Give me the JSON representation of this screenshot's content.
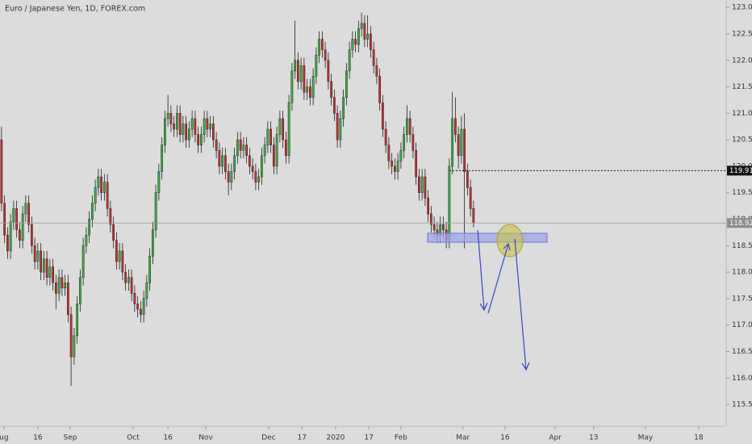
{
  "chart_data": {
    "type": "candlestick",
    "title": "Euro / Japanese Yen, 1D, FOREX.com",
    "up_color": "#3cb043",
    "down_color": "#c62f2f",
    "xlim": [
      -0.5,
      239.5
    ],
    "ylim": [
      115.09,
      123.14
    ],
    "xticks": [
      {
        "value": 0.8,
        "label": "ug"
      },
      {
        "value": 12,
        "label": "16"
      },
      {
        "value": 22.7,
        "label": "Sep"
      },
      {
        "value": 43.5,
        "label": "Oct"
      },
      {
        "value": 55,
        "label": "16"
      },
      {
        "value": 67.5,
        "label": "Nov"
      },
      {
        "value": 88.3,
        "label": "Dec"
      },
      {
        "value": 99.3,
        "label": "17"
      },
      {
        "value": 110.4,
        "label": "2020"
      },
      {
        "value": 121.4,
        "label": "17"
      },
      {
        "value": 132,
        "label": "Feb"
      },
      {
        "value": 152.5,
        "label": "Mar"
      },
      {
        "value": 166.4,
        "label": "16"
      },
      {
        "value": 183,
        "label": "Apr"
      },
      {
        "value": 195.7,
        "label": "13"
      },
      {
        "value": 212.8,
        "label": "May"
      },
      {
        "value": 230.4,
        "label": "18"
      }
    ],
    "yticks": [
      {
        "value": 115.5,
        "label": "115.500"
      },
      {
        "value": 116,
        "label": "116.000"
      },
      {
        "value": 116.5,
        "label": "116.500"
      },
      {
        "value": 117,
        "label": "117.000"
      },
      {
        "value": 117.5,
        "label": "117.500"
      },
      {
        "value": 118,
        "label": "118.000"
      },
      {
        "value": 118.5,
        "label": "118.500"
      },
      {
        "value": 119,
        "label": "119.000"
      },
      {
        "value": 119.5,
        "label": "119.500"
      },
      {
        "value": 120,
        "label": "120.000"
      },
      {
        "value": 120.5,
        "label": "120.500"
      },
      {
        "value": 121,
        "label": "121.000"
      },
      {
        "value": 121.5,
        "label": "121.500"
      },
      {
        "value": 122,
        "label": "122.000"
      },
      {
        "value": 122.5,
        "label": "122.500"
      },
      {
        "value": 123,
        "label": "123.000"
      }
    ],
    "price_lines": [
      {
        "value": 119.917
      }
    ],
    "candles": [
      [
        120.5,
        120.75,
        119.15,
        119.3
      ],
      [
        119.3,
        119.45,
        118.55,
        118.7
      ],
      [
        118.7,
        118.85,
        118.25,
        118.4
      ],
      [
        118.4,
        119.1,
        118.25,
        118.95
      ],
      [
        118.95,
        119.35,
        118.8,
        119.2
      ],
      [
        119.2,
        119.35,
        118.65,
        118.8
      ],
      [
        118.8,
        118.95,
        118.45,
        118.6
      ],
      [
        118.6,
        119.25,
        118.45,
        119.1
      ],
      [
        119.1,
        119.45,
        118.95,
        119.3
      ],
      [
        119.3,
        119.45,
        118.75,
        118.9
      ],
      [
        118.9,
        119.05,
        118.35,
        118.5
      ],
      [
        118.5,
        118.65,
        118.05,
        118.2
      ],
      [
        118.2,
        118.55,
        118.05,
        118.4
      ],
      [
        118.4,
        118.55,
        117.85,
        118.0
      ],
      [
        118.0,
        118.4,
        117.85,
        118.25
      ],
      [
        118.25,
        118.4,
        117.75,
        117.9
      ],
      [
        117.9,
        118.25,
        117.75,
        118.1
      ],
      [
        118.1,
        118.25,
        117.65,
        117.8
      ],
      [
        117.8,
        117.95,
        117.3,
        117.6
      ],
      [
        117.6,
        118.05,
        117.45,
        117.9
      ],
      [
        117.9,
        118.05,
        117.55,
        117.7
      ],
      [
        117.7,
        117.95,
        117.55,
        117.8
      ],
      [
        117.8,
        117.95,
        117.05,
        117.2
      ],
      [
        117.2,
        117.35,
        115.85,
        116.4
      ],
      [
        116.4,
        116.95,
        116.25,
        116.8
      ],
      [
        116.8,
        117.55,
        116.65,
        117.4
      ],
      [
        117.4,
        118.05,
        117.25,
        117.9
      ],
      [
        117.9,
        118.65,
        117.75,
        118.5
      ],
      [
        118.5,
        118.85,
        118.35,
        118.7
      ],
      [
        118.7,
        119.15,
        118.55,
        119.0
      ],
      [
        119.0,
        119.45,
        118.85,
        119.3
      ],
      [
        119.3,
        119.75,
        119.15,
        119.6
      ],
      [
        119.6,
        119.95,
        119.45,
        119.8
      ],
      [
        119.8,
        119.95,
        119.35,
        119.5
      ],
      [
        119.5,
        119.85,
        119.35,
        119.7
      ],
      [
        119.7,
        119.85,
        119.05,
        119.2
      ],
      [
        119.2,
        119.35,
        118.75,
        118.9
      ],
      [
        118.9,
        119.05,
        118.45,
        118.6
      ],
      [
        118.6,
        118.75,
        118.05,
        118.2
      ],
      [
        118.2,
        118.55,
        118.05,
        118.4
      ],
      [
        118.4,
        118.55,
        117.85,
        118.0
      ],
      [
        118.0,
        118.15,
        117.65,
        117.8
      ],
      [
        117.8,
        118.05,
        117.65,
        117.9
      ],
      [
        117.9,
        118.05,
        117.45,
        117.6
      ],
      [
        117.6,
        117.75,
        117.25,
        117.4
      ],
      [
        117.4,
        117.55,
        117.15,
        117.3
      ],
      [
        117.3,
        117.45,
        117.05,
        117.2
      ],
      [
        117.2,
        117.65,
        117.05,
        117.5
      ],
      [
        117.5,
        117.95,
        117.35,
        117.8
      ],
      [
        117.8,
        118.45,
        117.65,
        118.3
      ],
      [
        118.3,
        118.95,
        118.15,
        118.8
      ],
      [
        118.8,
        119.65,
        118.65,
        119.5
      ],
      [
        119.5,
        120.05,
        119.35,
        119.9
      ],
      [
        119.9,
        120.55,
        119.75,
        120.4
      ],
      [
        120.4,
        121.05,
        120.25,
        120.9
      ],
      [
        120.9,
        121.35,
        120.75,
        121.0
      ],
      [
        121.0,
        121.15,
        120.65,
        120.8
      ],
      [
        120.8,
        120.95,
        120.55,
        120.7
      ],
      [
        120.7,
        121.15,
        120.55,
        121.0
      ],
      [
        121.0,
        121.15,
        120.45,
        120.6
      ],
      [
        120.6,
        120.95,
        120.45,
        120.8
      ],
      [
        120.8,
        120.95,
        120.35,
        120.5
      ],
      [
        120.5,
        120.85,
        120.35,
        120.7
      ],
      [
        120.7,
        121.05,
        120.55,
        120.9
      ],
      [
        120.9,
        121.05,
        120.45,
        120.6
      ],
      [
        120.6,
        120.75,
        120.25,
        120.4
      ],
      [
        120.4,
        120.75,
        120.25,
        120.6
      ],
      [
        120.6,
        121.05,
        120.45,
        120.9
      ],
      [
        120.9,
        121.05,
        120.55,
        120.7
      ],
      [
        120.7,
        120.95,
        120.55,
        120.8
      ],
      [
        120.8,
        120.95,
        120.35,
        120.5
      ],
      [
        120.5,
        120.65,
        120.15,
        120.3
      ],
      [
        120.3,
        120.45,
        119.85,
        120.0
      ],
      [
        120.0,
        120.35,
        119.85,
        120.2
      ],
      [
        120.2,
        120.35,
        119.75,
        119.9
      ],
      [
        119.9,
        120.05,
        119.45,
        119.7
      ],
      [
        119.7,
        120.05,
        119.55,
        119.9
      ],
      [
        119.9,
        120.35,
        119.75,
        120.2
      ],
      [
        120.2,
        120.65,
        120.05,
        120.5
      ],
      [
        120.5,
        120.65,
        120.15,
        120.3
      ],
      [
        120.3,
        120.55,
        120.15,
        120.4
      ],
      [
        120.4,
        120.55,
        120.05,
        120.2
      ],
      [
        120.2,
        120.35,
        119.85,
        120.0
      ],
      [
        120.0,
        120.15,
        119.75,
        119.9
      ],
      [
        119.9,
        120.05,
        119.55,
        119.7
      ],
      [
        119.7,
        119.95,
        119.55,
        119.8
      ],
      [
        119.8,
        120.35,
        119.65,
        120.2
      ],
      [
        120.2,
        120.55,
        120.05,
        120.4
      ],
      [
        120.4,
        120.85,
        120.25,
        120.7
      ],
      [
        120.7,
        120.85,
        120.25,
        120.4
      ],
      [
        120.4,
        120.55,
        119.85,
        120.0
      ],
      [
        120.0,
        120.75,
        119.85,
        120.6
      ],
      [
        120.6,
        121.05,
        120.45,
        120.9
      ],
      [
        120.9,
        121.05,
        120.35,
        120.5
      ],
      [
        120.5,
        120.65,
        120.05,
        120.2
      ],
      [
        120.2,
        121.35,
        120.05,
        121.2
      ],
      [
        121.2,
        121.95,
        121.05,
        121.8
      ],
      [
        121.8,
        122.75,
        121.65,
        122.0
      ],
      [
        122.0,
        122.15,
        121.45,
        121.6
      ],
      [
        121.6,
        122.05,
        121.45,
        121.9
      ],
      [
        121.9,
        122.05,
        121.25,
        121.4
      ],
      [
        121.4,
        121.65,
        121.25,
        121.5
      ],
      [
        121.5,
        121.65,
        121.15,
        121.3
      ],
      [
        121.3,
        121.85,
        121.15,
        121.7
      ],
      [
        121.7,
        122.25,
        121.55,
        122.1
      ],
      [
        122.1,
        122.55,
        121.95,
        122.4
      ],
      [
        122.4,
        122.55,
        122.05,
        122.2
      ],
      [
        122.2,
        122.35,
        121.85,
        122.0
      ],
      [
        122.0,
        122.15,
        121.45,
        121.6
      ],
      [
        121.6,
        121.75,
        121.15,
        121.3
      ],
      [
        121.3,
        121.45,
        120.85,
        121.0
      ],
      [
        121.0,
        121.15,
        120.35,
        120.5
      ],
      [
        120.5,
        121.05,
        120.35,
        120.9
      ],
      [
        120.9,
        121.45,
        120.75,
        121.3
      ],
      [
        121.3,
        121.95,
        121.15,
        121.8
      ],
      [
        121.8,
        122.35,
        121.65,
        122.2
      ],
      [
        122.2,
        122.55,
        122.05,
        122.4
      ],
      [
        122.4,
        122.55,
        122.15,
        122.3
      ],
      [
        122.3,
        122.75,
        122.15,
        122.6
      ],
      [
        122.6,
        122.9,
        122.45,
        122.7
      ],
      [
        122.7,
        122.85,
        122.25,
        122.4
      ],
      [
        122.4,
        122.85,
        122.25,
        122.5
      ],
      [
        122.5,
        122.65,
        122.05,
        122.2
      ],
      [
        122.2,
        122.35,
        121.75,
        121.9
      ],
      [
        121.9,
        122.05,
        121.55,
        121.7
      ],
      [
        121.7,
        121.85,
        121.05,
        121.2
      ],
      [
        121.2,
        121.35,
        120.55,
        120.7
      ],
      [
        120.7,
        120.85,
        120.25,
        120.4
      ],
      [
        120.4,
        120.55,
        119.95,
        120.1
      ],
      [
        120.1,
        120.25,
        119.85,
        120.0
      ],
      [
        120.0,
        120.15,
        119.75,
        119.9
      ],
      [
        119.9,
        120.25,
        119.75,
        120.1
      ],
      [
        120.1,
        120.45,
        119.95,
        120.3
      ],
      [
        120.3,
        120.75,
        120.15,
        120.6
      ],
      [
        120.6,
        121.15,
        120.45,
        120.9
      ],
      [
        120.9,
        121.05,
        120.45,
        120.6
      ],
      [
        120.6,
        120.75,
        120.15,
        120.3
      ],
      [
        120.3,
        120.45,
        119.65,
        119.8
      ],
      [
        119.8,
        119.95,
        119.35,
        119.5
      ],
      [
        119.5,
        119.95,
        119.35,
        119.8
      ],
      [
        119.8,
        119.95,
        119.25,
        119.4
      ],
      [
        119.4,
        119.55,
        118.95,
        119.1
      ],
      [
        119.1,
        119.25,
        118.75,
        118.9
      ],
      [
        118.9,
        119.05,
        118.65,
        118.8
      ],
      [
        118.8,
        118.95,
        118.55,
        118.7
      ],
      [
        118.7,
        119.05,
        118.55,
        118.9
      ],
      [
        118.9,
        119.05,
        118.65,
        118.8
      ],
      [
        118.8,
        118.95,
        118.45,
        118.6
      ],
      [
        118.6,
        120.15,
        118.45,
        120.0
      ],
      [
        120.0,
        121.4,
        119.85,
        120.9
      ],
      [
        120.9,
        121.3,
        120.45,
        120.6
      ],
      [
        120.6,
        120.75,
        119.95,
        120.2
      ],
      [
        120.2,
        120.95,
        120.05,
        120.7
      ],
      [
        120.7,
        121.0,
        118.45,
        119.9
      ],
      [
        119.9,
        120.05,
        119.45,
        119.6
      ],
      [
        119.6,
        119.75,
        119.05,
        119.2
      ],
      [
        119.2,
        119.35,
        118.85,
        118.928
      ]
    ]
  }
}
